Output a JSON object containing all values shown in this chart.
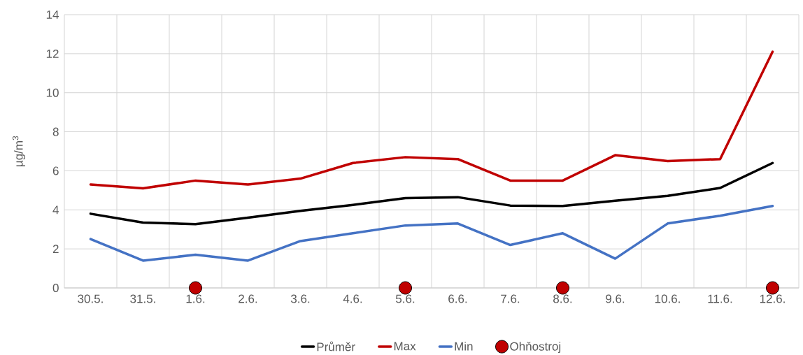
{
  "chart_data": {
    "type": "line",
    "ylabel": "µg/m$^{3}$",
    "categories": [
      "30.5.",
      "31.5.",
      "1.6.",
      "2.6.",
      "3.6.",
      "4.6.",
      "5.6.",
      "6.6.",
      "7.6.",
      "8.6.",
      "9.6.",
      "10.6.",
      "11.6.",
      "12.6."
    ],
    "series": [
      {
        "name": "Průměr",
        "color": "#000000",
        "values": [
          3.8,
          3.35,
          3.27,
          3.6,
          3.95,
          4.25,
          4.6,
          4.65,
          4.22,
          4.2,
          4.47,
          4.72,
          5.12,
          6.4
        ]
      },
      {
        "name": "Max",
        "color": "#c00000",
        "values": [
          5.3,
          5.1,
          5.5,
          5.3,
          5.6,
          6.4,
          6.7,
          6.6,
          5.5,
          5.5,
          6.8,
          6.5,
          6.6,
          12.1
        ]
      },
      {
        "name": "Min",
        "color": "#4472c4",
        "values": [
          2.5,
          1.4,
          1.7,
          1.4,
          2.4,
          2.8,
          3.2,
          3.3,
          2.2,
          2.8,
          1.5,
          3.3,
          3.7,
          4.2
        ]
      },
      {
        "name": "Ohňostroj",
        "type": "scatter",
        "marker": "circle",
        "color": "#c00000",
        "values": [
          null,
          null,
          0,
          null,
          null,
          null,
          0,
          null,
          null,
          0,
          null,
          null,
          null,
          0
        ]
      }
    ],
    "ylim": [
      0,
      14
    ],
    "yticks": [
      0,
      2,
      4,
      6,
      8,
      10,
      12,
      14
    ],
    "grid": true,
    "legend": "bottom"
  }
}
